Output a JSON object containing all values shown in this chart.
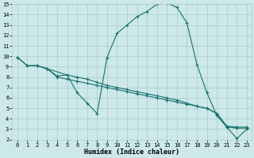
{
  "xlabel": "Humidex (Indice chaleur)",
  "bg_color": "#cce8e8",
  "grid_color": "#b0d0d0",
  "line_color": "#1a7070",
  "xlim": [
    -0.5,
    23.5
  ],
  "ylim": [
    2,
    15
  ],
  "xticks": [
    0,
    1,
    2,
    3,
    4,
    5,
    6,
    7,
    8,
    9,
    10,
    11,
    12,
    13,
    14,
    15,
    16,
    17,
    18,
    19,
    20,
    21,
    22,
    23
  ],
  "yticks": [
    2,
    3,
    4,
    5,
    6,
    7,
    8,
    9,
    10,
    11,
    12,
    13,
    14,
    15
  ],
  "line1_x": [
    0,
    1,
    2,
    3,
    4,
    5,
    6,
    7,
    8,
    9,
    10,
    11,
    12,
    13,
    14,
    15,
    16,
    17,
    18,
    19,
    20,
    21,
    22,
    23
  ],
  "line1_y": [
    9.9,
    9.1,
    9.1,
    8.8,
    8.1,
    8.2,
    6.5,
    5.5,
    4.5,
    9.9,
    12.2,
    13.0,
    13.8,
    14.3,
    15.0,
    15.1,
    14.7,
    13.2,
    9.2,
    6.5,
    4.3,
    3.2,
    2.1,
    3.0
  ],
  "line2_x": [
    0,
    1,
    2,
    3,
    5,
    6,
    7,
    8,
    9,
    10,
    11,
    12,
    13,
    14,
    15,
    16,
    17,
    18,
    19,
    20,
    21,
    22,
    23
  ],
  "line2_y": [
    9.9,
    9.1,
    9.1,
    8.8,
    8.2,
    8.0,
    7.8,
    7.5,
    7.2,
    7.0,
    6.8,
    6.6,
    6.4,
    6.2,
    6.0,
    5.8,
    5.5,
    5.2,
    5.0,
    4.5,
    3.2,
    3.1,
    3.1
  ],
  "line3_x": [
    2,
    3,
    4,
    5,
    6,
    7,
    8,
    9,
    10,
    11,
    12,
    13,
    14,
    15,
    16,
    17,
    18,
    19,
    20,
    21,
    22,
    23
  ],
  "line3_y": [
    9.1,
    8.8,
    8.0,
    7.8,
    7.6,
    7.4,
    7.2,
    7.0,
    6.8,
    6.6,
    6.4,
    6.2,
    6.0,
    5.8,
    5.6,
    5.4,
    5.2,
    5.0,
    4.5,
    3.3,
    3.2,
    3.2
  ],
  "xlabel_fontsize": 6,
  "tick_fontsize": 5
}
